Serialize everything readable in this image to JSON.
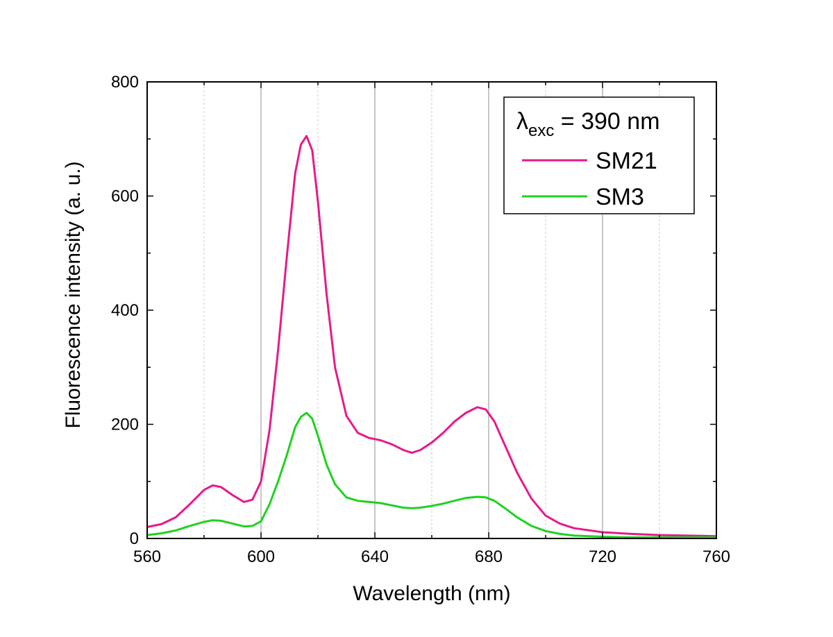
{
  "chart_data": {
    "type": "line",
    "xlabel": "Wavelength (nm)",
    "ylabel": "Fluorescence intensity (a. u.)",
    "xlim": [
      560,
      760
    ],
    "ylim": [
      0,
      800
    ],
    "x_ticks": [
      560,
      600,
      640,
      680,
      720,
      760
    ],
    "y_ticks": [
      0,
      200,
      400,
      600,
      800
    ],
    "x_ticks_labels": [
      "560",
      "600",
      "640",
      "680",
      "720",
      "760"
    ],
    "y_ticks_labels": [
      "0",
      "200",
      "400",
      "600",
      "800"
    ],
    "grid": "vertical major solid, minor dotted",
    "legend": {
      "placement": "top-right",
      "header_symbol": "λ",
      "header_subscript": "exc",
      "header_rest": " = 390 nm"
    },
    "x": [
      560,
      565,
      570,
      575,
      580,
      583,
      586,
      590,
      594,
      597,
      600,
      603,
      606,
      609,
      612,
      614,
      616,
      618,
      620,
      623,
      626,
      630,
      634,
      638,
      642,
      646,
      650,
      653,
      656,
      660,
      664,
      668,
      672,
      676,
      679,
      682,
      686,
      690,
      695,
      700,
      705,
      710,
      720,
      730,
      740,
      750,
      760
    ],
    "series": [
      {
        "name": "SM21",
        "color": "#e6198c",
        "values": [
          20,
          25,
          37,
          60,
          85,
          93,
          90,
          76,
          64,
          68,
          100,
          190,
          330,
          490,
          640,
          690,
          705,
          680,
          590,
          430,
          300,
          215,
          185,
          176,
          172,
          165,
          155,
          150,
          155,
          168,
          185,
          205,
          220,
          230,
          226,
          205,
          160,
          115,
          70,
          40,
          26,
          18,
          11,
          8,
          6,
          5,
          4
        ]
      },
      {
        "name": "SM3",
        "color": "#1ed21e",
        "values": [
          6,
          9,
          14,
          22,
          29,
          32,
          31,
          26,
          21,
          22,
          30,
          60,
          100,
          145,
          195,
          213,
          220,
          210,
          180,
          130,
          95,
          72,
          66,
          64,
          62,
          58,
          54,
          53,
          54,
          57,
          61,
          66,
          71,
          73,
          72,
          66,
          52,
          37,
          22,
          13,
          8,
          5,
          3,
          2,
          2,
          2,
          2
        ]
      }
    ]
  }
}
